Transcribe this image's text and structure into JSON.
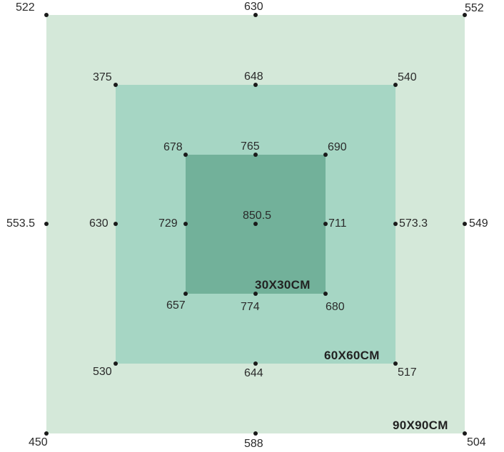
{
  "colors": {
    "outer": "#d4e8d9",
    "middle": "#a6d6c4",
    "inner": "#72b19a"
  },
  "squares": {
    "outer": {
      "label": "90X90CM"
    },
    "middle": {
      "label": "60X60CM"
    },
    "inner": {
      "label": "30X30CM"
    }
  },
  "points": {
    "outer_top_left": "522",
    "outer_top_center": "630",
    "outer_top_right": "552",
    "outer_middle_left": "553.5",
    "outer_middle_right": "549",
    "outer_bottom_left": "450",
    "outer_bottom_center": "588",
    "outer_bottom_right": "504",
    "middle_top_left": "375",
    "middle_top_center": "648",
    "middle_top_right": "540",
    "middle_middle_left": "630",
    "middle_middle_right": "573.3",
    "middle_bottom_left": "530",
    "middle_bottom_center": "644",
    "middle_bottom_right": "517",
    "inner_top_left": "678",
    "inner_top_center": "765",
    "inner_top_right": "690",
    "inner_middle_left": "729",
    "center": "850.5",
    "inner_middle_right": "711",
    "inner_bottom_left": "657",
    "inner_bottom_center": "774",
    "inner_bottom_right": "680"
  }
}
